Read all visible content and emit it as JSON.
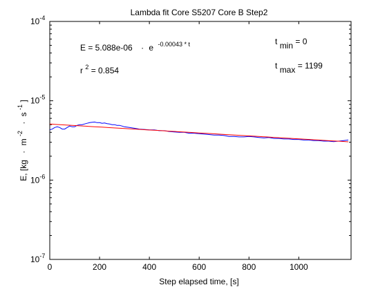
{
  "chart_data": {
    "type": "line",
    "title": "Lambda fit  Core S5207 Core B  Step2",
    "xlabel": "Step elapsed time, [s]",
    "ylabel": {
      "prefix": "E, [kg",
      "mid1": "m",
      "sup1": "-2",
      "mid2": "s",
      "sup2": "-1",
      "suffix": "]"
    },
    "xlim": [
      0,
      1210
    ],
    "ylim": [
      1e-07,
      0.0001
    ],
    "yscale": "log",
    "grid": false,
    "x_ticks": [
      0,
      200,
      400,
      600,
      800,
      1000
    ],
    "x_tick_labels": [
      "0",
      "200",
      "400",
      "600",
      "800",
      "1000"
    ],
    "y_ticks": [
      {
        "value": 1e-07,
        "base": "10",
        "exp": "-7"
      },
      {
        "value": 1e-06,
        "base": "10",
        "exp": "-6"
      },
      {
        "value": 1e-05,
        "base": "10",
        "exp": "-5"
      },
      {
        "value": 0.0001,
        "base": "10",
        "exp": "-4"
      }
    ],
    "annotations": {
      "equation": {
        "lhs": "E = 5.088e-06",
        "dot": "·",
        "base": "e",
        "exponent": "-0.00043 * t"
      },
      "r2": {
        "base": "r",
        "sup": "2",
        "rest": " = 0.854"
      },
      "tmin": {
        "base": "t",
        "sub": "min",
        "rest": " = 0"
      },
      "tmax": {
        "base": "t",
        "sub": "max",
        "rest": " = 1199"
      }
    },
    "series": [
      {
        "color": "#0000ff",
        "x": [
          0,
          10,
          20,
          30,
          40,
          50,
          60,
          70,
          80,
          90,
          100,
          110,
          120,
          130,
          140,
          150,
          160,
          170,
          180,
          190,
          200,
          210,
          220,
          230,
          240,
          250,
          260,
          270,
          280,
          290,
          300,
          320,
          340,
          360,
          380,
          400,
          420,
          440,
          460,
          480,
          500,
          520,
          540,
          560,
          580,
          600,
          620,
          640,
          660,
          680,
          700,
          720,
          740,
          760,
          780,
          800,
          820,
          840,
          860,
          880,
          900,
          920,
          940,
          960,
          980,
          1000,
          1020,
          1040,
          1060,
          1080,
          1100,
          1120,
          1140,
          1160,
          1180,
          1199
        ],
        "y": [
          4.3e-06,
          4.4e-06,
          4.6e-06,
          4.7e-06,
          4.6e-06,
          4.4e-06,
          4.4e-06,
          4.6e-06,
          4.8e-06,
          4.7e-06,
          4.7e-06,
          4.9e-06,
          5e-06,
          5e-06,
          5.1e-06,
          5.2e-06,
          5.3e-06,
          5.35e-06,
          5.4e-06,
          5.3e-06,
          5.3e-06,
          5.2e-06,
          5.25e-06,
          5.15e-06,
          5.1e-06,
          5e-06,
          5e-06,
          4.9e-06,
          4.9e-06,
          4.8e-06,
          4.7e-06,
          4.6e-06,
          4.5e-06,
          4.4e-06,
          4.35e-06,
          4.3e-06,
          4.3e-06,
          4.2e-06,
          4.2e-06,
          4.1e-06,
          4.05e-06,
          4e-06,
          4e-06,
          3.9e-06,
          3.9e-06,
          3.85e-06,
          3.8e-06,
          3.75e-06,
          3.7e-06,
          3.7e-06,
          3.65e-06,
          3.55e-06,
          3.55e-06,
          3.5e-06,
          3.5e-06,
          3.55e-06,
          3.5e-06,
          3.45e-06,
          3.4e-06,
          3.45e-06,
          3.35e-06,
          3.35e-06,
          3.3e-06,
          3.3e-06,
          3.25e-06,
          3.25e-06,
          3.2e-06,
          3.2e-06,
          3.15e-06,
          3.15e-06,
          3.1e-06,
          3.1e-06,
          3.05e-06,
          3.1e-06,
          3.15e-06,
          3.2e-06
        ]
      },
      {
        "color": "#ff0000",
        "fit": {
          "a": 5.088e-06,
          "b": -0.00043
        },
        "x": [
          0,
          1199
        ],
        "y": [
          5.088e-06,
          3.05e-06
        ]
      }
    ]
  }
}
